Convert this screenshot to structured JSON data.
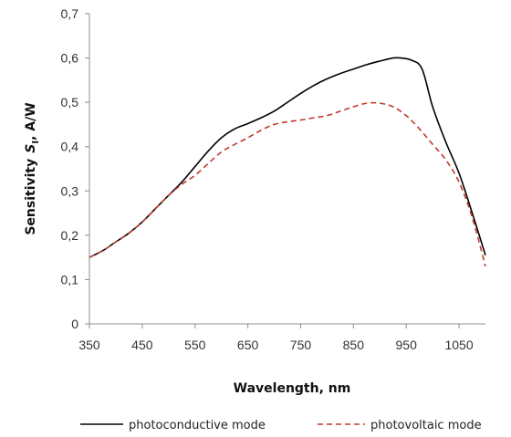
{
  "chart_data": {
    "type": "line",
    "xlabel": "Wavelength, nm",
    "ylabel_main": "Sensitivity",
    "ylabel_symbol": "S",
    "ylabel_sub": "I",
    "ylabel_unit": ", A/W",
    "xlim": [
      350,
      1100
    ],
    "ylim": [
      0,
      0.7
    ],
    "x_ticks": [
      350,
      450,
      550,
      650,
      750,
      850,
      950,
      1050
    ],
    "x_tick_labels": [
      "350",
      "450",
      "550",
      "650",
      "750",
      "850",
      "950",
      "1050"
    ],
    "y_ticks": [
      0,
      0.1,
      0.2,
      0.3,
      0.4,
      0.5,
      0.6,
      0.7
    ],
    "y_tick_labels": [
      "0",
      "0,1",
      "0,2",
      "0,3",
      "0,4",
      "0,5",
      "0,6",
      "0,7"
    ],
    "grid": false,
    "legend_position": "bottom",
    "series": [
      {
        "name": "photoconductive mode",
        "color": "#000000",
        "dash": "solid",
        "x": [
          350,
          375,
          400,
          425,
          450,
          475,
          500,
          525,
          550,
          575,
          600,
          625,
          650,
          675,
          700,
          725,
          750,
          775,
          800,
          825,
          850,
          875,
          900,
          925,
          940,
          960,
          980,
          1000,
          1025,
          1050,
          1075,
          1100
        ],
        "y": [
          0.15,
          0.165,
          0.185,
          0.205,
          0.23,
          0.26,
          0.29,
          0.32,
          0.355,
          0.39,
          0.42,
          0.44,
          0.452,
          0.465,
          0.48,
          0.5,
          0.52,
          0.538,
          0.553,
          0.565,
          0.575,
          0.585,
          0.593,
          0.6,
          0.6,
          0.595,
          0.575,
          0.49,
          0.41,
          0.34,
          0.25,
          0.155
        ]
      },
      {
        "name": "photovoltaic mode",
        "color": "#c0392b",
        "dash": "dashed",
        "x": [
          350,
          375,
          400,
          425,
          450,
          475,
          500,
          525,
          550,
          575,
          600,
          625,
          650,
          675,
          700,
          725,
          750,
          775,
          800,
          825,
          850,
          875,
          900,
          925,
          950,
          975,
          1000,
          1025,
          1050,
          1075,
          1100
        ],
        "y": [
          0.15,
          0.165,
          0.185,
          0.205,
          0.23,
          0.26,
          0.29,
          0.315,
          0.335,
          0.362,
          0.388,
          0.405,
          0.42,
          0.437,
          0.45,
          0.456,
          0.46,
          0.465,
          0.47,
          0.48,
          0.49,
          0.498,
          0.498,
          0.49,
          0.47,
          0.44,
          0.405,
          0.37,
          0.32,
          0.24,
          0.13
        ]
      }
    ]
  }
}
